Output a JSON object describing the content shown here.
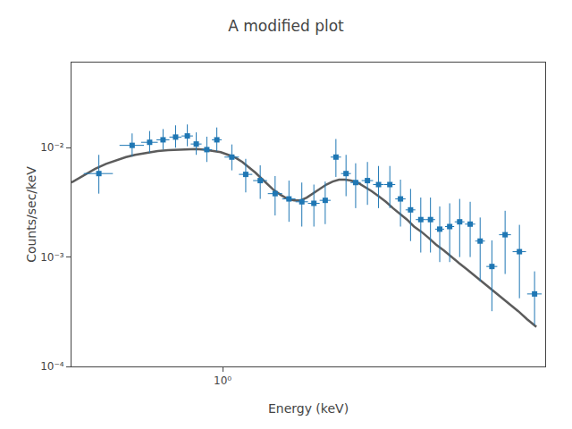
{
  "chart_data": {
    "type": "scatter",
    "title": "A modified plot",
    "xlabel": "Energy (keV)",
    "ylabel": "Counts/sec/keV",
    "log": true,
    "grid": false,
    "xlim": [
      0.45,
      5.5
    ],
    "ylim": [
      0.0001,
      0.06
    ],
    "xticks": [
      {
        "value": 1,
        "label": "10⁰"
      }
    ],
    "yticks": [
      {
        "value": 0.0001,
        "label": "10⁻⁴"
      },
      {
        "value": 0.001,
        "label": "10⁻³"
      },
      {
        "value": 0.01,
        "label": "10⁻²"
      }
    ],
    "series": [
      {
        "type": "scatter",
        "marker": "square",
        "color": "#1f77b4",
        "x": [
          0.52,
          0.62,
          0.68,
          0.73,
          0.78,
          0.83,
          0.87,
          0.92,
          0.97,
          1.05,
          1.13,
          1.22,
          1.32,
          1.42,
          1.52,
          1.62,
          1.72,
          1.82,
          1.92,
          2.02,
          2.15,
          2.28,
          2.42,
          2.56,
          2.7,
          2.85,
          3.0,
          3.15,
          3.32,
          3.5,
          3.7,
          3.9,
          4.15,
          4.45,
          4.8,
          5.2
        ],
        "values": [
          0.0058,
          0.0105,
          0.0112,
          0.0118,
          0.0125,
          0.0128,
          0.0108,
          0.0096,
          0.0118,
          0.0082,
          0.0057,
          0.005,
          0.0038,
          0.0034,
          0.0032,
          0.0031,
          0.0033,
          0.0082,
          0.0058,
          0.0048,
          0.005,
          0.0046,
          0.0046,
          0.0034,
          0.0027,
          0.0022,
          0.0022,
          0.0018,
          0.0019,
          0.0021,
          0.002,
          0.0014,
          0.00082,
          0.0016,
          0.00112,
          0.00046
        ],
        "xerr_low": [
          0.04,
          0.04,
          0.03,
          0.025,
          0.025,
          0.025,
          0.025,
          0.025,
          0.025,
          0.04,
          0.04,
          0.045,
          0.05,
          0.05,
          0.05,
          0.05,
          0.05,
          0.05,
          0.05,
          0.055,
          0.065,
          0.065,
          0.07,
          0.07,
          0.07,
          0.075,
          0.075,
          0.075,
          0.08,
          0.09,
          0.1,
          0.1,
          0.12,
          0.14,
          0.17,
          0.2
        ],
        "xerr_high": [
          0.04,
          0.04,
          0.03,
          0.025,
          0.025,
          0.025,
          0.025,
          0.025,
          0.025,
          0.04,
          0.04,
          0.045,
          0.05,
          0.05,
          0.05,
          0.05,
          0.05,
          0.05,
          0.05,
          0.055,
          0.065,
          0.065,
          0.07,
          0.07,
          0.07,
          0.075,
          0.075,
          0.075,
          0.08,
          0.09,
          0.1,
          0.1,
          0.12,
          0.14,
          0.17,
          0.2
        ],
        "yerr_low": [
          0.002,
          0.0022,
          0.0022,
          0.0022,
          0.0025,
          0.0025,
          0.0022,
          0.0022,
          0.0025,
          0.002,
          0.0018,
          0.0016,
          0.0014,
          0.0013,
          0.0013,
          0.0012,
          0.0013,
          0.0028,
          0.0022,
          0.002,
          0.002,
          0.0018,
          0.0018,
          0.0015,
          0.0013,
          0.0011,
          0.0011,
          0.0009,
          0.001,
          0.0011,
          0.001,
          0.0008,
          0.0005,
          0.0009,
          0.0007,
          0.00022
        ],
        "yerr_high": [
          0.0028,
          0.003,
          0.003,
          0.003,
          0.0035,
          0.0035,
          0.003,
          0.003,
          0.0035,
          0.0025,
          0.0022,
          0.0019,
          0.0017,
          0.0016,
          0.0016,
          0.0015,
          0.0016,
          0.0038,
          0.0028,
          0.0024,
          0.0024,
          0.0022,
          0.0022,
          0.0017,
          0.0015,
          0.0013,
          0.0013,
          0.0011,
          0.0012,
          0.0013,
          0.0012,
          0.0009,
          0.0006,
          0.00105,
          0.00085,
          0.00028
        ]
      },
      {
        "type": "line",
        "color": "#404040",
        "x": [
          0.45,
          0.48,
          0.51,
          0.54,
          0.57,
          0.6,
          0.63,
          0.67,
          0.71,
          0.75,
          0.79,
          0.83,
          0.87,
          0.91,
          0.95,
          0.99,
          1.03,
          1.07,
          1.11,
          1.15,
          1.19,
          1.23,
          1.27,
          1.31,
          1.36,
          1.41,
          1.46,
          1.51,
          1.56,
          1.61,
          1.67,
          1.73,
          1.79,
          1.85,
          1.91,
          1.97,
          2.04,
          2.12,
          2.2,
          2.28,
          2.37,
          2.46,
          2.55,
          2.65,
          2.75,
          2.86,
          2.97,
          3.09,
          3.22,
          3.35,
          3.49,
          3.64,
          3.8,
          3.97,
          4.15,
          4.34,
          4.55,
          4.77,
          5.0,
          5.25
        ],
        "values": [
          0.0048,
          0.0056,
          0.0064,
          0.0071,
          0.0077,
          0.0082,
          0.0086,
          0.009,
          0.0093,
          0.0095,
          0.0096,
          0.0097,
          0.0097,
          0.0096,
          0.0094,
          0.0091,
          0.0086,
          0.0081,
          0.0074,
          0.0066,
          0.0059,
          0.0052,
          0.0046,
          0.0041,
          0.0037,
          0.0034,
          0.0033,
          0.0033,
          0.0035,
          0.0038,
          0.0042,
          0.0046,
          0.0049,
          0.0051,
          0.0051,
          0.005,
          0.0048,
          0.0044,
          0.004,
          0.0036,
          0.0032,
          0.0028,
          0.0025,
          0.0022,
          0.0019,
          0.0017,
          0.0015,
          0.0013,
          0.00115,
          0.001,
          0.00088,
          0.00077,
          0.00067,
          0.00058,
          0.0005,
          0.00043,
          0.00037,
          0.00032,
          0.00027,
          0.00023
        ]
      }
    ]
  }
}
